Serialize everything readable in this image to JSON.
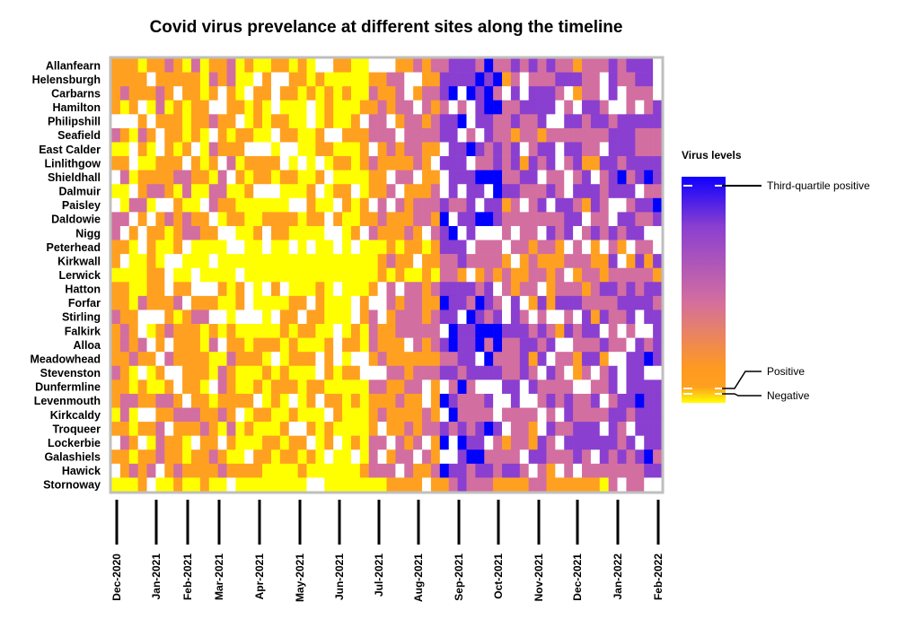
{
  "chart_data": {
    "type": "heatmap",
    "title": "Covid virus prevelance at different sites along the timeline",
    "sites": [
      "Allanfearn",
      "Helensburgh",
      "Carbarns",
      "Hamilton",
      "Philipshill",
      "Seafield",
      "East Calder",
      "Linlithgow",
      "Shieldhall",
      "Dalmuir",
      "Paisley",
      "Daldowie",
      "Nigg",
      "Peterhead",
      "Kirkwall",
      "Lerwick",
      "Hatton",
      "Forfar",
      "Stirling",
      "Falkirk",
      "Alloa",
      "Meadowhead",
      "Stevenston",
      "Dunfermline",
      "Levenmouth",
      "Kirkcaldy",
      "Troqueer",
      "Lockerbie",
      "Galashiels",
      "Hawick",
      "Stornoway"
    ],
    "x_axis_ticks": [
      "Dec-2020",
      "Jan-2021",
      "Feb-2021",
      "Mar-2021",
      "Apr-2021",
      "May-2021",
      "Jun-2021",
      "Jul-2021",
      "Aug-2021",
      "Sep-2021",
      "Oct-2021",
      "Nov-2021",
      "Dec-2021",
      "Jan-2022",
      "Feb-2022"
    ],
    "x_range": [
      "2020-11-30",
      "2022-02-08"
    ],
    "time_step": "weekly",
    "weeks": 62,
    "levels_note": "0 = no sample (white), 1 = negative (yellow) ... 5 = third-quartile positive or higher (blue)",
    "colorscale": [
      "#ffff00",
      "#ffa020",
      "#d36ea0",
      "#8a3fd0",
      "#0000ff"
    ],
    "missing_color": "#ffffff",
    "grid": false,
    "legend": {
      "title": "Virus levels",
      "placement": "right",
      "labels": [
        "Third-quartile positive",
        "Positive",
        "Negative"
      ]
    }
  }
}
